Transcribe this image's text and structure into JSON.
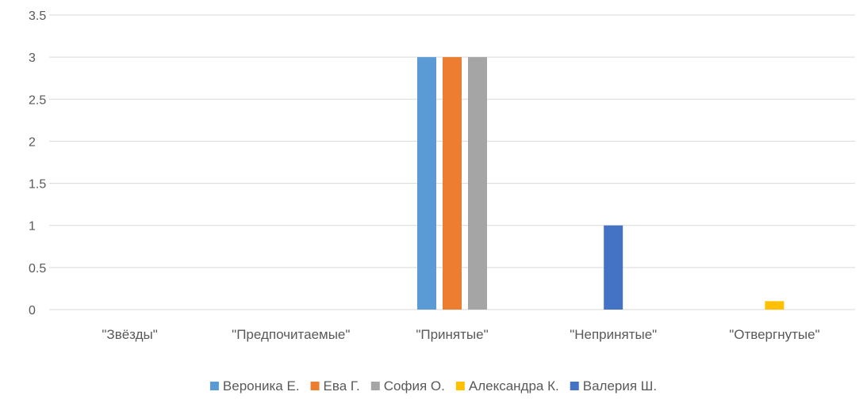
{
  "chart_data": {
    "type": "bar",
    "categories": [
      "\"Звёзды\"",
      "\"Предпочитаемые\"",
      "\"Принятые\"",
      "\"Непринятые\"",
      "\"Отвергнутые\""
    ],
    "series": [
      {
        "name": "Вероника Е.",
        "color": "#5B9BD5",
        "values": [
          0,
          0,
          3,
          0,
          0
        ]
      },
      {
        "name": "Ева Г.",
        "color": "#ED7D31",
        "values": [
          0,
          0,
          3,
          0,
          0
        ]
      },
      {
        "name": "София О.",
        "color": "#A5A5A5",
        "values": [
          0,
          0,
          3,
          0,
          0
        ]
      },
      {
        "name": "Александра К.",
        "color": "#FFC000",
        "values": [
          0,
          0,
          0,
          0,
          0.1
        ]
      },
      {
        "name": "Валерия Ш.",
        "color": "#4472C4",
        "values": [
          0,
          0,
          0,
          1,
          0
        ]
      }
    ],
    "ylim": [
      0,
      3.5
    ],
    "yticks": [
      "0",
      "0.5",
      "1",
      "1.5",
      "2",
      "2.5",
      "3",
      "3.5"
    ],
    "grid": true,
    "legend": "bottom",
    "colors": {
      "grid": "#D9D9D9",
      "text": "#595959"
    }
  }
}
